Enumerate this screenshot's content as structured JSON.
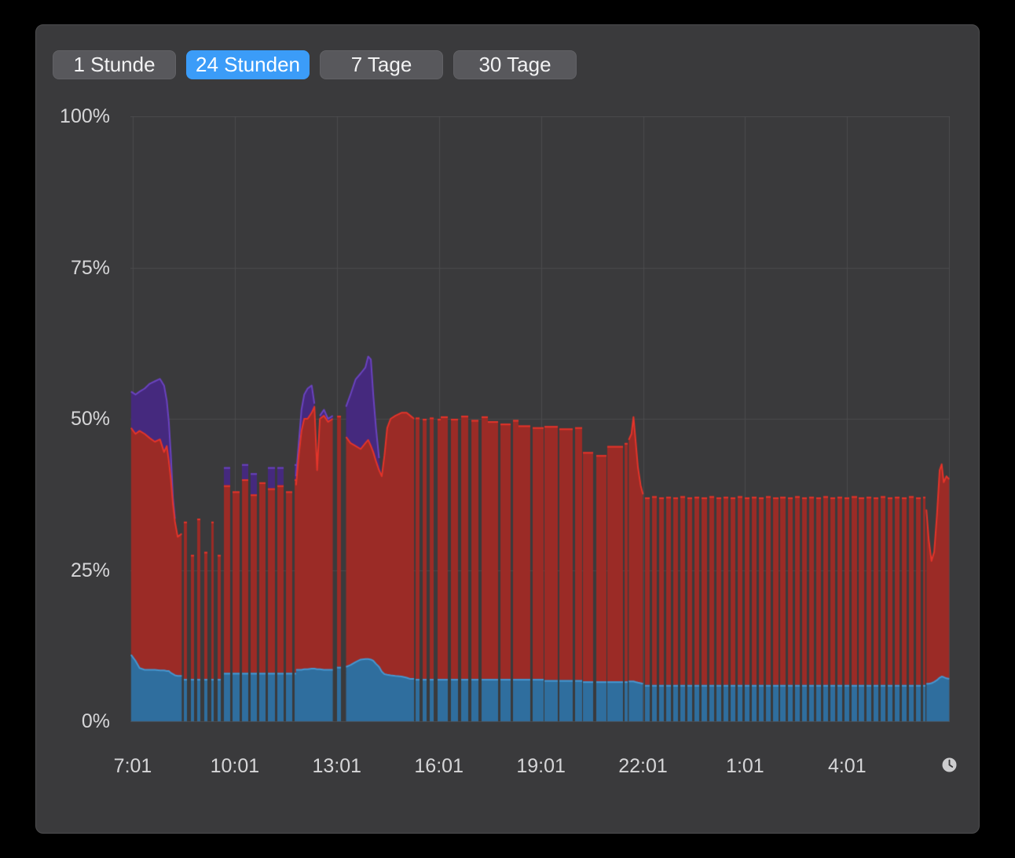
{
  "toolbar": {
    "buttons": [
      {
        "label": "1 Stunde",
        "selected": false
      },
      {
        "label": "24 Stunden",
        "selected": true
      },
      {
        "label": "7 Tage",
        "selected": false
      },
      {
        "label": "30 Tage",
        "selected": false
      }
    ]
  },
  "colors": {
    "outer_bg": "#000000",
    "panel_bg": "#3a3a3c",
    "grid": "#4a4a4d",
    "label": "#d6d6d8",
    "button_bg": "#58585c",
    "button_selected_bg": "#3b9cf8",
    "button_text": "#f2f2f3"
  },
  "icons": {
    "clock": "clock-history-toggle"
  },
  "chart_data": {
    "type": "area",
    "stacked": true,
    "unit": "%",
    "title": "",
    "x_axis": {
      "labels": [
        "7:01",
        "10:01",
        "13:01",
        "16:01",
        "19:01",
        "22:01",
        "1:01",
        "4:01"
      ],
      "tick_t_hours": [
        0,
        3,
        6,
        9,
        12,
        15,
        18,
        21
      ],
      "start_label": "7:01",
      "span_hours": 24,
      "grid": true
    },
    "y_axis": {
      "labels": [
        "100%",
        "75%",
        "50%",
        "25%",
        "0%"
      ],
      "tick_values": [
        100,
        75,
        50,
        25,
        0
      ],
      "min": 0,
      "max": 100,
      "grid": true
    },
    "series": [
      {
        "id": "blue",
        "fill": "#2f6e9e",
        "line": "#4597d1"
      },
      {
        "id": "red",
        "fill": "#9b2b26",
        "line": "#e4342a"
      },
      {
        "id": "purple",
        "fill": "#45297e",
        "line": "#6a43c0"
      }
    ],
    "point_format": "[t_hours_from_7:01, blue_top_pct, red_top_pct, purple_top_pct] (stacked tops; gaps between segments are data dropouts)",
    "segments": [
      {
        "mode": "area",
        "points": [
          [
            -0.05,
            11,
            48.5,
            54.5
          ],
          [
            0.08,
            10,
            47.5,
            54
          ],
          [
            0.2,
            8.8,
            48,
            54.5
          ],
          [
            0.35,
            8.5,
            47.5,
            55
          ],
          [
            0.5,
            8.5,
            46.8,
            55.8
          ],
          [
            0.65,
            8.5,
            46.2,
            56.2
          ],
          [
            0.8,
            8.4,
            46.6,
            56.6
          ],
          [
            0.92,
            8.4,
            44.5,
            55.5
          ],
          [
            1.0,
            8.3,
            45.5,
            53
          ],
          [
            1.06,
            8.3,
            43,
            49.5
          ],
          [
            1.12,
            8,
            40,
            44
          ],
          [
            1.18,
            7.8,
            36,
            37
          ],
          [
            1.24,
            7.6,
            33,
            33.5
          ],
          [
            1.32,
            7.5,
            30.5,
            30.5
          ],
          [
            1.44,
            7.5,
            31,
            31
          ]
        ]
      },
      {
        "mode": "bars",
        "t0": 1.5,
        "t1": 2.64,
        "period": 0.2,
        "duty": 0.45,
        "b": 7,
        "tops": [
          33,
          27.5,
          33.5,
          28
        ]
      },
      {
        "mode": "bars",
        "t0": 2.68,
        "t1": 4.78,
        "period": 0.26,
        "duty": 0.73,
        "b": 8,
        "tops": [
          39,
          38,
          40,
          37.5,
          39.5,
          38.5
        ],
        "ptops": [
          42,
          0,
          42.5,
          41,
          0,
          42
        ]
      },
      {
        "mode": "area",
        "points": [
          [
            4.8,
            8.5,
            39,
            40.5
          ],
          [
            4.88,
            8.5,
            44,
            46
          ],
          [
            4.96,
            8.5,
            48,
            51.5
          ],
          [
            5.04,
            8.6,
            50,
            54
          ],
          [
            5.14,
            8.6,
            50,
            55
          ],
          [
            5.26,
            8.7,
            51,
            55.5
          ],
          [
            5.34,
            8.7,
            52,
            52.5
          ],
          [
            5.42,
            8.6,
            41.5,
            41.5
          ],
          [
            5.5,
            8.6,
            50,
            50.5
          ],
          [
            5.62,
            8.5,
            50.5,
            51.5
          ],
          [
            5.74,
            8.5,
            49.5,
            50
          ],
          [
            5.88,
            8.5,
            50,
            50.5
          ]
        ]
      },
      {
        "mode": "bars",
        "t0": 6.0,
        "t1": 6.13,
        "period": 0.14,
        "duty": 0.9,
        "b": 9,
        "tops": [
          50.5
        ]
      },
      {
        "mode": "area",
        "points": [
          [
            6.27,
            9,
            47,
            52
          ],
          [
            6.4,
            9.3,
            46,
            54
          ],
          [
            6.55,
            9.8,
            45.5,
            56.5
          ],
          [
            6.7,
            10.2,
            45,
            57.5
          ],
          [
            6.84,
            10.3,
            46,
            58.5
          ],
          [
            6.92,
            10.3,
            46.5,
            60.3
          ],
          [
            7.0,
            10.2,
            45.5,
            59.8
          ],
          [
            7.07,
            10,
            44.5,
            54
          ],
          [
            7.15,
            9.5,
            43,
            48.5
          ],
          [
            7.24,
            9,
            41.5,
            43.5
          ],
          [
            7.32,
            8.2,
            40.5,
            40.5
          ],
          [
            7.4,
            7.8,
            44,
            44
          ],
          [
            7.48,
            7.7,
            48.5,
            48.5
          ],
          [
            7.58,
            7.6,
            50,
            50
          ],
          [
            7.72,
            7.5,
            50.5,
            50.5
          ],
          [
            7.9,
            7.4,
            51,
            51
          ],
          [
            8.05,
            7.2,
            51,
            51
          ],
          [
            8.16,
            7,
            50.5,
            50.5
          ],
          [
            8.27,
            7,
            50,
            50
          ]
        ]
      },
      {
        "mode": "bars",
        "t0": 8.32,
        "t1": 9.05,
        "period": 0.21,
        "duty": 0.5,
        "b": 7,
        "tops": [
          50.2,
          50
        ]
      },
      {
        "mode": "bars",
        "t0": 9.05,
        "t1": 10.45,
        "period": 0.3,
        "duty": 0.7,
        "b": 7,
        "tops": [
          50.4,
          50,
          50.5,
          49.8
        ]
      },
      {
        "mode": "bars",
        "t0": 10.45,
        "t1": 11.35,
        "period": 0.36,
        "duty": 0.8,
        "b": 7,
        "tops": [
          49.6,
          49.2,
          49.8
        ]
      },
      {
        "mode": "bars",
        "t0": 11.35,
        "t1": 12.1,
        "period": 0.4,
        "duty": 0.85,
        "b": 7,
        "tops": [
          48.9,
          48.6
        ]
      },
      {
        "mode": "bars",
        "t0": 12.1,
        "t1": 13.2,
        "period": 0.45,
        "duty": 0.86,
        "b": 6.8,
        "tops": [
          48.8,
          48.4,
          48.6
        ]
      },
      {
        "mode": "bars",
        "t0": 13.24,
        "t1": 13.94,
        "period": 0.38,
        "duty": 0.8,
        "b": 6.6,
        "tops": [
          44.5,
          44,
          45
        ]
      },
      {
        "mode": "bars",
        "t0": 13.96,
        "t1": 14.56,
        "period": 0.5,
        "duty": 0.88,
        "b": 6.6,
        "tops": [
          45.5,
          46
        ]
      },
      {
        "mode": "area",
        "points": [
          [
            14.58,
            6.6,
            46.5,
            46.5
          ],
          [
            14.66,
            6.6,
            47.5,
            47.5
          ],
          [
            14.72,
            6.6,
            50.3,
            50.3
          ],
          [
            14.78,
            6.5,
            46.5,
            46.5
          ],
          [
            14.85,
            6.4,
            42,
            42
          ],
          [
            14.93,
            6.3,
            39,
            39
          ],
          [
            15.0,
            6.2,
            37.5,
            37.5
          ]
        ]
      },
      {
        "mode": "bars",
        "t0": 15.05,
        "t1": 23.3,
        "period": 0.21,
        "duty": 0.68,
        "b": 6,
        "tops": [
          37,
          37.2,
          37,
          37.1
        ]
      },
      {
        "mode": "area",
        "points": [
          [
            23.33,
            6.2,
            35,
            35
          ],
          [
            23.4,
            6.2,
            30,
            30
          ],
          [
            23.48,
            6.3,
            26.5,
            26.5
          ],
          [
            23.56,
            6.5,
            28,
            28
          ],
          [
            23.64,
            6.8,
            34,
            34
          ],
          [
            23.72,
            7.2,
            41.5,
            41.5
          ],
          [
            23.78,
            7.4,
            42.5,
            42.5
          ],
          [
            23.84,
            7.3,
            39.5,
            39.5
          ],
          [
            23.92,
            7.1,
            40.5,
            40.5
          ],
          [
            24.0,
            7,
            40,
            40
          ]
        ]
      }
    ]
  }
}
